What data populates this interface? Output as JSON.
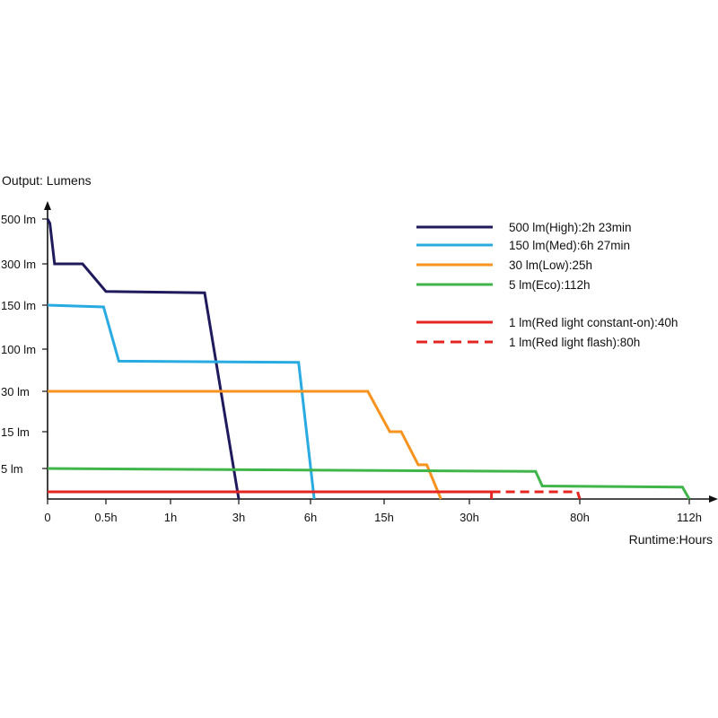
{
  "chart_data": {
    "type": "line",
    "title": "",
    "ylabel": "Output: Lumens",
    "xlabel": "Runtime:Hours",
    "x_ticks": [
      {
        "label": "0",
        "t": 0
      },
      {
        "label": "0.5h",
        "t": 0.5
      },
      {
        "label": "1h",
        "t": 1
      },
      {
        "label": "3h",
        "t": 3
      },
      {
        "label": "6h",
        "t": 6
      },
      {
        "label": "15h",
        "t": 15
      },
      {
        "label": "30h",
        "t": 30
      },
      {
        "label": "80h",
        "t": 80
      },
      {
        "label": "112h",
        "t": 112
      }
    ],
    "y_ticks": [
      {
        "label": "500 lm",
        "v": 500
      },
      {
        "label": "300 lm",
        "v": 300
      },
      {
        "label": "150 lm",
        "v": 150
      },
      {
        "label": "100 lm",
        "v": 100
      },
      {
        "label": "30 lm",
        "v": 30
      },
      {
        "label": "15 lm",
        "v": 15
      },
      {
        "label": "5 lm",
        "v": 5
      }
    ],
    "legend_position": "top-right",
    "grid": false,
    "series": [
      {
        "name": "500 lm(High):2h 23min",
        "color": "#1f1a5c",
        "dash": false,
        "points": [
          [
            0,
            500
          ],
          [
            0.02,
            480
          ],
          [
            0.06,
            300
          ],
          [
            0.3,
            300
          ],
          [
            0.5,
            200
          ],
          [
            2,
            195
          ],
          [
            3,
            0
          ],
          [
            3,
            0
          ]
        ]
      },
      {
        "name": "150 lm(Med):6h 27min",
        "color": "#29abe2",
        "dash": false,
        "points": [
          [
            0,
            150
          ],
          [
            0.48,
            148
          ],
          [
            0.6,
            80
          ],
          [
            5.5,
            78
          ],
          [
            6.45,
            0
          ],
          [
            6.45,
            0
          ]
        ]
      },
      {
        "name": "30 lm(Low):25h",
        "color": "#f7931e",
        "dash": false,
        "points": [
          [
            0,
            30
          ],
          [
            13,
            30
          ],
          [
            16,
            15
          ],
          [
            18,
            15
          ],
          [
            21,
            6
          ],
          [
            22.5,
            6
          ],
          [
            25,
            0
          ],
          [
            25,
            0
          ]
        ]
      },
      {
        "name": "5 lm(Eco):112h",
        "color": "#3fb54a",
        "dash": false,
        "points": [
          [
            0,
            5
          ],
          [
            60,
            4.5
          ],
          [
            63,
            2
          ],
          [
            110,
            1.8
          ],
          [
            112,
            0
          ],
          [
            112,
            0
          ]
        ]
      },
      {
        "name": "1 lm(Red light constant-on):40h",
        "color": "#e42521",
        "dash": false,
        "points": [
          [
            0,
            1
          ],
          [
            40,
            1
          ],
          [
            40,
            0
          ],
          [
            40,
            0
          ]
        ]
      },
      {
        "name": "1 lm(Red light flash):80h",
        "color": "#e42521",
        "dash": true,
        "points": [
          [
            40,
            1
          ],
          [
            79,
            1
          ],
          [
            80,
            0
          ],
          [
            80,
            0
          ]
        ]
      }
    ]
  }
}
